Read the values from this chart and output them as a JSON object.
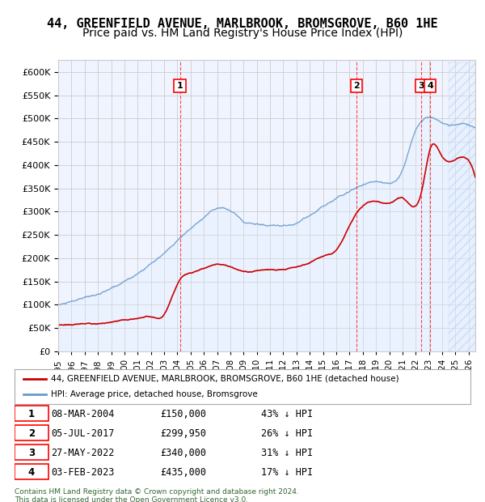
{
  "title": "44, GREENFIELD AVENUE, MARLBROOK, BROMSGROVE, B60 1HE",
  "subtitle": "Price paid vs. HM Land Registry's House Price Index (HPI)",
  "ylabel": "",
  "ylim": [
    0,
    625000
  ],
  "yticks": [
    0,
    50000,
    100000,
    150000,
    200000,
    250000,
    300000,
    350000,
    400000,
    450000,
    500000,
    550000,
    600000
  ],
  "xlim_start": 1995.0,
  "xlim_end": 2026.5,
  "sale_color": "#cc0000",
  "hpi_color": "#6699cc",
  "hpi_fill_color": "#ddeeff",
  "background_color": "#ffffff",
  "plot_bg_color": "#f0f4ff",
  "grid_color": "#cccccc",
  "legend_label_sale": "44, GREENFIELD AVENUE, MARLBROOK, BROMSGROVE, B60 1HE (detached house)",
  "legend_label_hpi": "HPI: Average price, detached house, Bromsgrove",
  "sales": [
    {
      "date": 2004.19,
      "price": 150000,
      "label": "1"
    },
    {
      "date": 2017.51,
      "price": 299950,
      "label": "2"
    },
    {
      "date": 2022.41,
      "price": 340000,
      "label": "3"
    },
    {
      "date": 2023.09,
      "price": 435000,
      "label": "4"
    }
  ],
  "table_rows": [
    [
      "1",
      "08-MAR-2004",
      "£150,000",
      "43% ↓ HPI"
    ],
    [
      "2",
      "05-JUL-2017",
      "£299,950",
      "26% ↓ HPI"
    ],
    [
      "3",
      "27-MAY-2022",
      "£340,000",
      "31% ↓ HPI"
    ],
    [
      "4",
      "03-FEB-2023",
      "£435,000",
      "17% ↓ HPI"
    ]
  ],
  "footer": "Contains HM Land Registry data © Crown copyright and database right 2024.\nThis data is licensed under the Open Government Licence v3.0.",
  "hatch_color": "#aabbcc",
  "title_fontsize": 11,
  "subtitle_fontsize": 10
}
